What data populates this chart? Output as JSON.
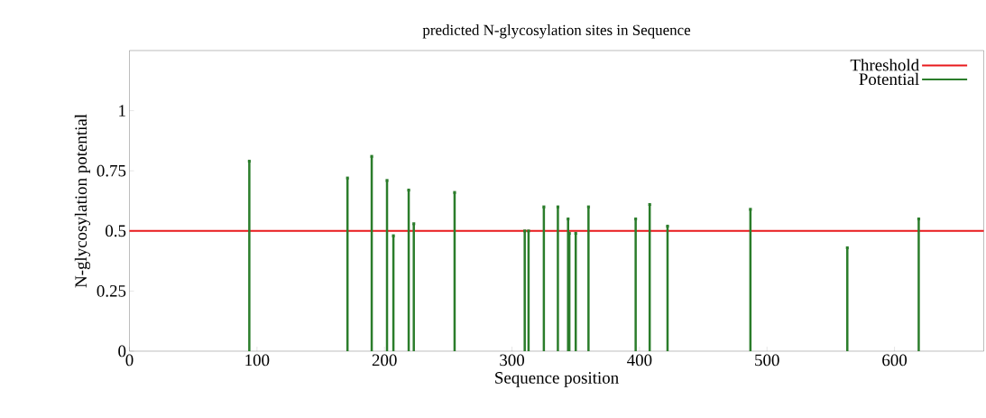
{
  "chart_data": {
    "type": "lollipop",
    "marker": "square",
    "title": "predicted N-glycosylation sites in Sequence",
    "xlabel": "Sequence position",
    "ylabel": "N-glycosylation potential",
    "xlim": [
      0,
      670
    ],
    "xticks": [
      0,
      100,
      200,
      300,
      400,
      500,
      600
    ],
    "ylim": [
      0,
      1.25
    ],
    "yticks": [
      0,
      0.25,
      0.5,
      0.75,
      1
    ],
    "legend": "top right",
    "ref_lines": [
      {
        "axis": "y",
        "value": 0.5,
        "label": "Threshold",
        "color": "#e8191c"
      }
    ],
    "x": [
      94,
      171,
      190,
      202,
      207,
      219,
      223,
      255,
      310,
      313,
      325,
      336,
      344,
      345,
      350,
      360,
      397,
      408,
      422,
      487,
      563,
      619
    ],
    "series": [
      {
        "name": "Potential",
        "color": "#2b7d2b",
        "values": [
          0.79,
          0.72,
          0.81,
          0.71,
          0.48,
          0.67,
          0.53,
          0.66,
          0.5,
          0.5,
          0.6,
          0.6,
          0.55,
          0.49,
          0.49,
          0.6,
          0.55,
          0.61,
          0.52,
          0.59,
          0.43,
          0.55
        ]
      }
    ]
  }
}
